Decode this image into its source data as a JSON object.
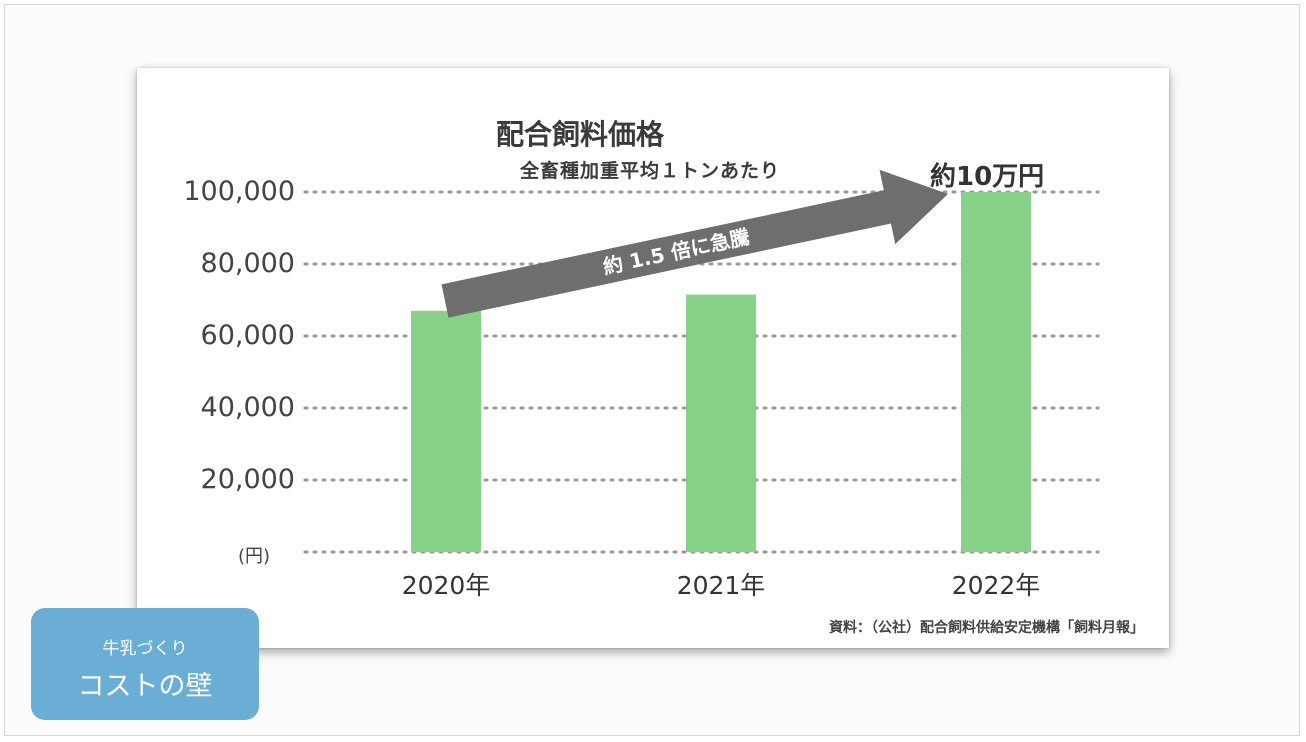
{
  "chart_data": {
    "type": "bar",
    "title": "配合飼料価格",
    "subtitle": "全畜種加重平均１トンあたり",
    "categories": [
      "2020年",
      "2021年",
      "2022年"
    ],
    "values": [
      67000,
      71500,
      100000
    ],
    "ylim": [
      0,
      100000
    ],
    "yticks": [
      "(円)",
      "20,000",
      "40,000",
      "60,000",
      "80,000",
      "100,000"
    ],
    "ytick_values": [
      0,
      20000,
      40000,
      60000,
      80000,
      100000
    ],
    "grid": true,
    "bar_color": "#87d189",
    "annotations": {
      "arrow_label": "約 1.5 倍に急騰",
      "peak_label": "約10万円",
      "arrow_color": "#6e6e6e"
    },
    "source": "資料：（公社）配合飼料供給安定機構「飼料月報」"
  },
  "badge": {
    "line1": "牛乳づくり",
    "line2": "コストの壁",
    "color": "#6aaed6"
  }
}
